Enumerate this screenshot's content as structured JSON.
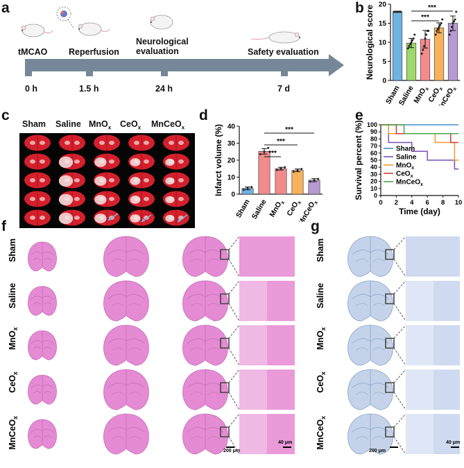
{
  "panel_letters": {
    "a": "a",
    "b": "b",
    "c": "c",
    "d": "d",
    "e": "e",
    "f": "f",
    "g": "g"
  },
  "timeline": {
    "events_top": [
      "tMCAO",
      "Reperfusion",
      "Neurological\nevaluation",
      "Safety evaluation"
    ],
    "times": [
      "0 h",
      "1.5 h",
      "24 h",
      "7 d"
    ]
  },
  "groups_plain": [
    "Sham",
    "Saline",
    "MnOx",
    "CeOx",
    "MnCeOx"
  ],
  "groups_sub": [
    {
      "base": "Sham",
      "sub": ""
    },
    {
      "base": "Saline",
      "sub": ""
    },
    {
      "base": "MnO",
      "sub": "x"
    },
    {
      "base": "CeO",
      "sub": "x"
    },
    {
      "base": "MnCeO",
      "sub": "x"
    }
  ],
  "group_colors": {
    "b": [
      "#6fb3e0",
      "#9fd86b",
      "#f28b8b",
      "#f8b25c",
      "#b89ad3"
    ],
    "d": [
      "#6fb3e0",
      "#f28b8b",
      "#f28b8b",
      "#f8b25c",
      "#b89ad3"
    ],
    "e": [
      "#3f8fd0",
      "#7b4fb8",
      "#f39a2b",
      "#d9363e",
      "#4aa845"
    ]
  },
  "significance": "***",
  "scale_bars": {
    "f_200": "200 μm",
    "f_40": "40 μm",
    "g_200": "200 μm",
    "g_40": "40 μm"
  },
  "chart_data": [
    {
      "panel": "b",
      "type": "bar",
      "title": "",
      "ylabel": "Neurological score",
      "ylim": [
        0,
        20
      ],
      "yticks": [
        0,
        5,
        10,
        15,
        20
      ],
      "categories": [
        "Sham",
        "Saline",
        "MnOx",
        "CeOx",
        "MnCeOx"
      ],
      "values": [
        18,
        9.8,
        10.8,
        13.8,
        15.0
      ],
      "errors": [
        0,
        1.2,
        2.3,
        1.3,
        1.9
      ],
      "points": [
        [
          18,
          18,
          18,
          18,
          18,
          18,
          18
        ],
        [
          8.4,
          9,
          9.5,
          10,
          10.5,
          11,
          12
        ],
        [
          7,
          8,
          9,
          11,
          12,
          13,
          13
        ],
        [
          12,
          13,
          13.5,
          14,
          14.5,
          15,
          16
        ],
        [
          12,
          13,
          14,
          15,
          15.5,
          16,
          18
        ]
      ],
      "significance": [
        [
          "Saline",
          "MnCeOx"
        ],
        [
          "Saline",
          "CeOx"
        ]
      ]
    },
    {
      "panel": "d",
      "type": "bar",
      "title": "",
      "ylabel": "Infarct volume (%)",
      "ylim": [
        0,
        40
      ],
      "yticks": [
        0,
        10,
        20,
        30,
        40
      ],
      "categories": [
        "Sham",
        "Saline",
        "MnOx",
        "CeOx",
        "MnCeOx"
      ],
      "values": [
        3.4,
        25.2,
        15.0,
        14.0,
        8.2
      ],
      "errors": [
        0.8,
        1.6,
        0.8,
        0.8,
        0.9
      ],
      "points": [
        [
          2.5,
          3.5,
          4.2
        ],
        [
          23.5,
          25,
          27.2
        ],
        [
          14.2,
          15,
          15.8
        ],
        [
          13.2,
          14,
          14.8
        ],
        [
          7.4,
          8.2,
          9
        ]
      ],
      "significance": [
        [
          "Saline",
          "MnCeOx"
        ],
        [
          "Saline",
          "CeOx"
        ],
        [
          "Saline",
          "MnOx"
        ]
      ]
    },
    {
      "panel": "e",
      "type": "line",
      "title": "",
      "xlabel": "Time (day)",
      "ylabel": "Survival percent (%)",
      "xlim": [
        0,
        10
      ],
      "ylim": [
        0,
        100
      ],
      "xticks": [
        0,
        2,
        4,
        6,
        8,
        10
      ],
      "yticks": [
        0,
        10,
        20,
        30,
        40,
        50,
        60,
        70,
        80,
        90,
        100
      ],
      "series": [
        {
          "name": "Sham",
          "steps": [
            [
              0,
              100
            ],
            [
              10,
              100
            ]
          ]
        },
        {
          "name": "Saline",
          "steps": [
            [
              0,
              100
            ],
            [
              1,
              75
            ],
            [
              4,
              62.5
            ],
            [
              6,
              50
            ],
            [
              9,
              50
            ],
            [
              9.5,
              37.5
            ],
            [
              10,
              37.5
            ]
          ]
        },
        {
          "name": "MnOx",
          "steps": [
            [
              0,
              100
            ],
            [
              1,
              87.5
            ],
            [
              7,
              75
            ],
            [
              9.5,
              50
            ],
            [
              10,
              50
            ]
          ]
        },
        {
          "name": "CeOx",
          "steps": [
            [
              0,
              100
            ],
            [
              2,
              87.5
            ],
            [
              9,
              75
            ],
            [
              10,
              75
            ]
          ]
        },
        {
          "name": "MnCeOx",
          "steps": [
            [
              0,
              100
            ],
            [
              3,
              87.5
            ],
            [
              10,
              87.5
            ]
          ]
        }
      ]
    }
  ]
}
